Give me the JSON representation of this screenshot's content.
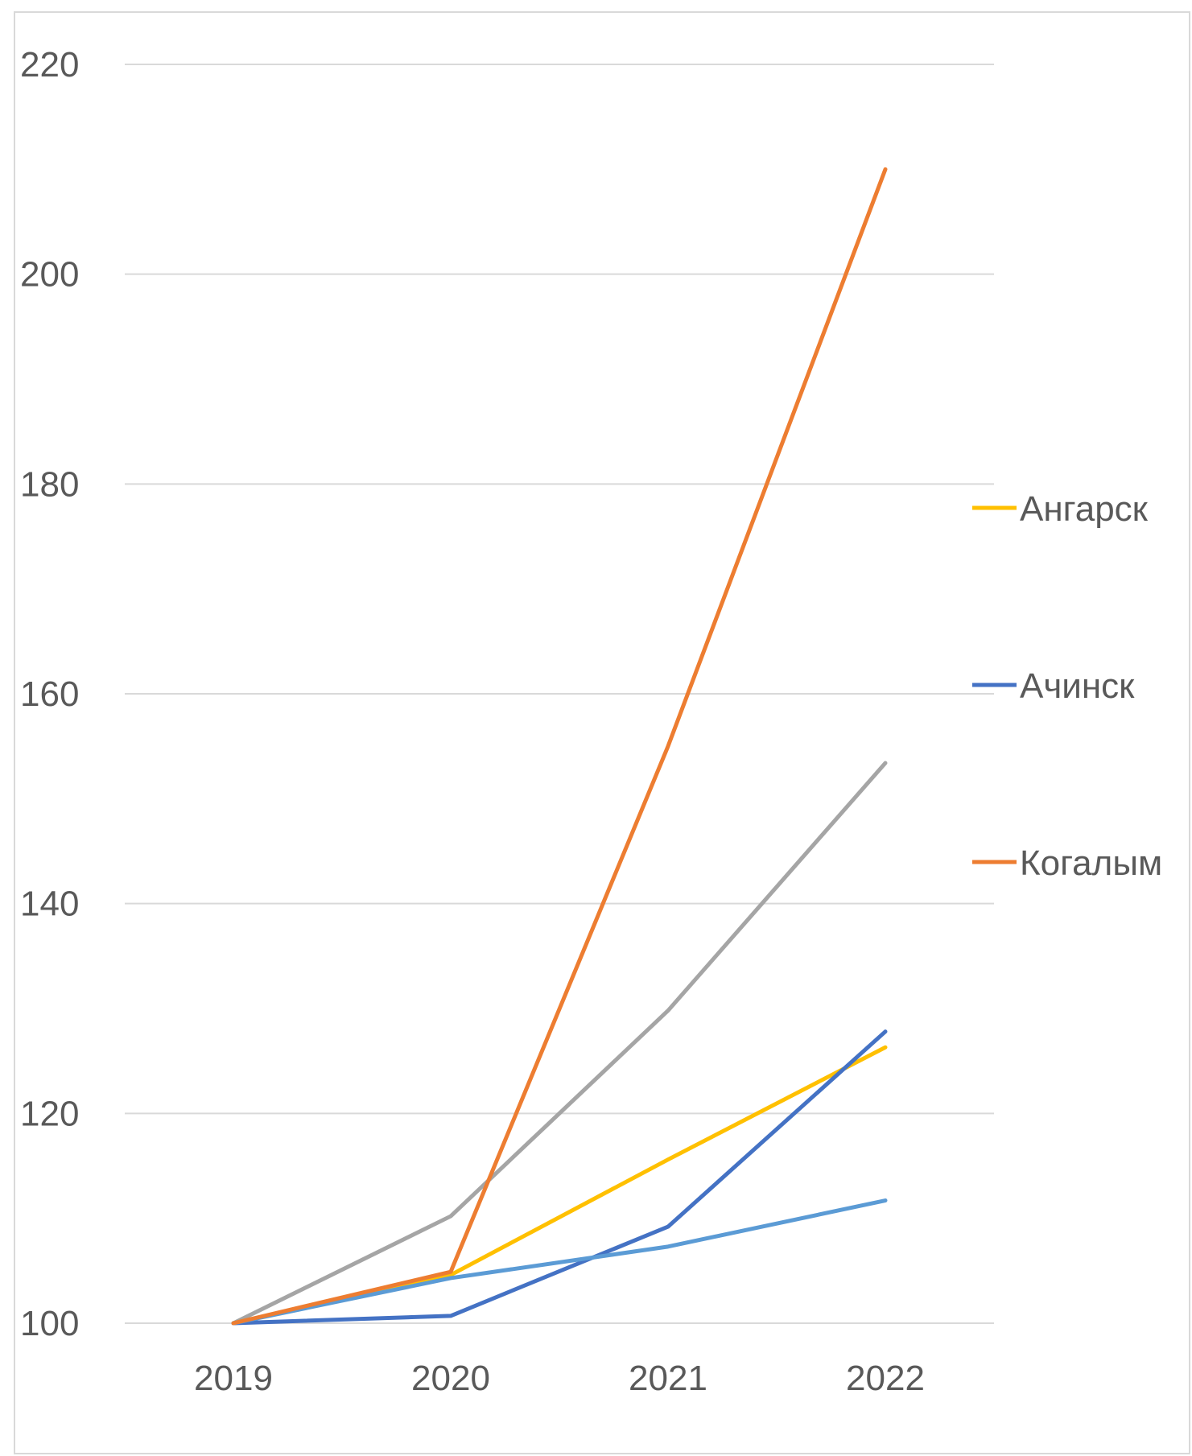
{
  "chart_data": {
    "type": "line",
    "title": "",
    "xlabel": "",
    "ylabel": "",
    "categories": [
      "2019",
      "2020",
      "2021",
      "2022"
    ],
    "ylim": [
      100,
      220
    ],
    "yticks": [
      100,
      120,
      140,
      160,
      180,
      200,
      220
    ],
    "grid": true,
    "legend_position": "right",
    "series": [
      {
        "name": "Ангарск",
        "color": "#FFC000",
        "values": [
          100,
          104.6,
          115.6,
          126.3
        ],
        "in_legend": true
      },
      {
        "name": "Ачинск",
        "color": "#4472C4",
        "values": [
          100,
          100.7,
          109.2,
          127.8
        ],
        "in_legend": true
      },
      {
        "name": "Когалым",
        "color": "#ED7D31",
        "values": [
          100,
          104.9,
          155.0,
          210.0
        ],
        "in_legend": true
      },
      {
        "color": "#A5A5A5",
        "values": [
          100,
          110.2,
          129.8,
          153.4
        ],
        "in_legend": false
      },
      {
        "color": "#5B9BD5",
        "values": [
          100,
          104.3,
          107.3,
          111.7
        ],
        "in_legend": false
      }
    ]
  }
}
